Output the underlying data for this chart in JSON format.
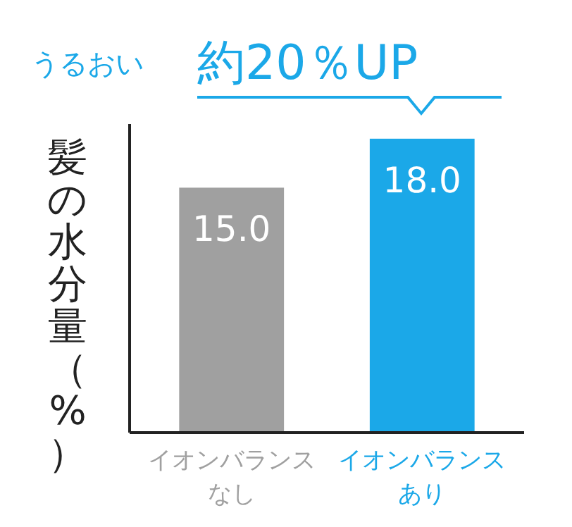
{
  "chart_data": {
    "type": "bar",
    "ylabel": "髪の水分量（%）",
    "categories": [
      "イオンバランスなし",
      "イオンバランスあり"
    ],
    "values": [
      15.0,
      18.0
    ],
    "colors": [
      "#a0a0a0",
      "#1ba8e8"
    ],
    "value_labels": [
      "15.0",
      "18.0"
    ],
    "annotations": [
      "うるおい",
      "約20％UP"
    ]
  }
}
